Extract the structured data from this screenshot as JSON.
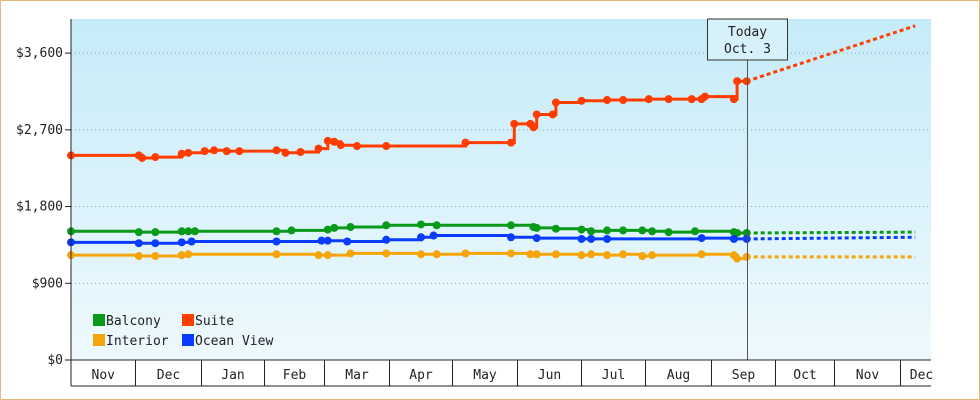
{
  "chart_data": {
    "type": "line",
    "title": "",
    "xlabel": "",
    "ylabel": "",
    "ylim": [
      0,
      4000
    ],
    "yticks": [
      {
        "value": 0,
        "label": "$0"
      },
      {
        "value": 900,
        "label": "$900"
      },
      {
        "value": 1800,
        "label": "$1,800"
      },
      {
        "value": 2700,
        "label": "$2,700"
      },
      {
        "value": 3600,
        "label": "$3,600"
      }
    ],
    "months": [
      "Nov",
      "Dec",
      "Jan",
      "Feb",
      "Mar",
      "Apr",
      "May",
      "Jun",
      "Jul",
      "Aug",
      "Sep",
      "Oct",
      "Nov",
      "Dec"
    ],
    "today": {
      "line1": "Today",
      "line2": "Oct. 3"
    },
    "legend": {
      "position": "bottom-left"
    },
    "series": [
      {
        "name": "Suite",
        "color": "#ff3d00",
        "values": [
          [
            0.0,
            2400
          ],
          [
            1.05,
            2400
          ],
          [
            1.1,
            2370
          ],
          [
            1.3,
            2380
          ],
          [
            1.7,
            2420
          ],
          [
            1.8,
            2430
          ],
          [
            2.05,
            2450
          ],
          [
            2.2,
            2460
          ],
          [
            2.4,
            2450
          ],
          [
            2.6,
            2450
          ],
          [
            3.2,
            2460
          ],
          [
            3.35,
            2430
          ],
          [
            3.6,
            2440
          ],
          [
            3.9,
            2480
          ],
          [
            4.05,
            2570
          ],
          [
            4.15,
            2560
          ],
          [
            4.25,
            2520
          ],
          [
            4.5,
            2510
          ],
          [
            4.95,
            2510
          ],
          [
            6.2,
            2550
          ],
          [
            6.9,
            2550
          ],
          [
            6.95,
            2770
          ],
          [
            7.2,
            2770
          ],
          [
            7.25,
            2730
          ],
          [
            7.3,
            2880
          ],
          [
            7.55,
            2880
          ],
          [
            7.6,
            3020
          ],
          [
            8.0,
            3040
          ],
          [
            8.4,
            3050
          ],
          [
            8.65,
            3050
          ],
          [
            9.05,
            3060
          ],
          [
            9.35,
            3060
          ],
          [
            9.7,
            3060
          ],
          [
            9.85,
            3060
          ],
          [
            9.9,
            3090
          ],
          [
            10.35,
            3060
          ],
          [
            10.4,
            3270
          ],
          [
            10.55,
            3270
          ]
        ],
        "projection": [
          [
            10.55,
            3270
          ],
          [
            13.35,
            3920
          ]
        ]
      },
      {
        "name": "Balcony",
        "color": "#0a9a1a",
        "values": [
          [
            0.0,
            1510
          ],
          [
            1.05,
            1500
          ],
          [
            1.3,
            1500
          ],
          [
            1.7,
            1510
          ],
          [
            1.8,
            1510
          ],
          [
            1.9,
            1510
          ],
          [
            3.2,
            1510
          ],
          [
            3.45,
            1520
          ],
          [
            4.05,
            1530
          ],
          [
            4.15,
            1550
          ],
          [
            4.4,
            1560
          ],
          [
            4.95,
            1580
          ],
          [
            5.5,
            1590
          ],
          [
            5.75,
            1580
          ],
          [
            6.9,
            1580
          ],
          [
            7.25,
            1560
          ],
          [
            7.3,
            1550
          ],
          [
            7.6,
            1540
          ],
          [
            8.0,
            1530
          ],
          [
            8.15,
            1510
          ],
          [
            8.4,
            1520
          ],
          [
            8.65,
            1520
          ],
          [
            8.95,
            1520
          ],
          [
            9.1,
            1510
          ],
          [
            9.35,
            1500
          ],
          [
            9.75,
            1510
          ],
          [
            10.35,
            1500
          ],
          [
            10.4,
            1490
          ],
          [
            10.55,
            1490
          ]
        ],
        "projection": [
          [
            10.55,
            1490
          ],
          [
            13.35,
            1500
          ]
        ]
      },
      {
        "name": "Ocean View",
        "color": "#0a3cff",
        "values": [
          [
            0.0,
            1380
          ],
          [
            1.05,
            1370
          ],
          [
            1.3,
            1370
          ],
          [
            1.7,
            1380
          ],
          [
            1.85,
            1390
          ],
          [
            3.2,
            1390
          ],
          [
            3.95,
            1400
          ],
          [
            4.05,
            1400
          ],
          [
            4.35,
            1390
          ],
          [
            4.95,
            1410
          ],
          [
            5.5,
            1440
          ],
          [
            5.7,
            1460
          ],
          [
            6.9,
            1440
          ],
          [
            7.3,
            1430
          ],
          [
            8.0,
            1420
          ],
          [
            8.15,
            1420
          ],
          [
            8.4,
            1420
          ],
          [
            9.85,
            1430
          ],
          [
            10.35,
            1420
          ],
          [
            10.55,
            1420
          ]
        ],
        "projection": [
          [
            10.55,
            1420
          ],
          [
            13.35,
            1440
          ]
        ]
      },
      {
        "name": "Interior",
        "color": "#f5a50a",
        "values": [
          [
            0.0,
            1230
          ],
          [
            1.05,
            1220
          ],
          [
            1.3,
            1220
          ],
          [
            1.7,
            1230
          ],
          [
            1.8,
            1240
          ],
          [
            3.2,
            1240
          ],
          [
            3.9,
            1230
          ],
          [
            4.05,
            1230
          ],
          [
            4.4,
            1250
          ],
          [
            4.95,
            1250
          ],
          [
            5.5,
            1240
          ],
          [
            5.75,
            1240
          ],
          [
            6.2,
            1250
          ],
          [
            6.9,
            1250
          ],
          [
            7.2,
            1240
          ],
          [
            7.3,
            1240
          ],
          [
            7.6,
            1240
          ],
          [
            8.0,
            1230
          ],
          [
            8.15,
            1240
          ],
          [
            8.4,
            1230
          ],
          [
            8.65,
            1240
          ],
          [
            8.95,
            1220
          ],
          [
            9.1,
            1230
          ],
          [
            9.85,
            1240
          ],
          [
            10.35,
            1230
          ],
          [
            10.4,
            1190
          ],
          [
            10.55,
            1210
          ]
        ],
        "projection": [
          [
            10.55,
            1210
          ],
          [
            13.35,
            1210
          ]
        ]
      }
    ]
  }
}
